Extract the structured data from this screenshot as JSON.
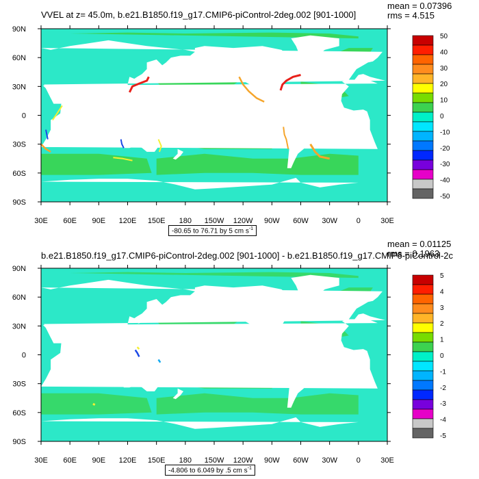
{
  "chart_data": [
    {
      "type": "heatmap",
      "title": "VVEL at z=  45.0m, b.e21.B1850.f19_g17.CMIP6-piControl-2deg.002 [901-1000]",
      "stats": {
        "mean": "mean = 0.07396",
        "rms": "rms = 4.515"
      },
      "range_text": "-80.65 to 76.71 by 5 cm s",
      "units_sup": "-1",
      "x_ticks": [
        "30E",
        "60E",
        "90E",
        "120E",
        "150E",
        "180",
        "150W",
        "120W",
        "90W",
        "60W",
        "30W",
        "0",
        "30E"
      ],
      "y_ticks": [
        "90N",
        "60N",
        "30N",
        "0",
        "30S",
        "60S",
        "90S"
      ],
      "colorbar_labels": [
        "50",
        "40",
        "30",
        "20",
        "10",
        "0",
        "-10",
        "-20",
        "-30",
        "-40",
        "-50"
      ],
      "levels": [
        -50,
        -40,
        -30,
        -20,
        -10,
        0,
        10,
        20,
        30,
        40,
        50
      ],
      "background": "#2ce8c8",
      "colors": {
        "land": "#ffffff",
        "cyan": "#2ce8c8",
        "green": "#38d65a",
        "lime": "#63e63a",
        "yellow": "#f5f032",
        "orange": "#f5a52b",
        "red": "#e8201a",
        "blue": "#1a48e6",
        "lightblue": "#14aaf0"
      }
    },
    {
      "type": "heatmap",
      "title": "b.e21.B1850.f19_g17.CMIP6-piControl-2deg.002 [901-1000] - b.e21.B1850.f19_g17.CMIP6-piControl-2c",
      "stats": {
        "mean": "mean = 0.01125",
        "rms": "rms = 0.1963"
      },
      "range_text": "-4.806 to 6.049 by .5 cm s",
      "units_sup": "-1",
      "x_ticks": [
        "30E",
        "60E",
        "90E",
        "120E",
        "150E",
        "180",
        "150W",
        "120W",
        "90W",
        "60W",
        "30W",
        "0",
        "30E"
      ],
      "y_ticks": [
        "90N",
        "60N",
        "30N",
        "0",
        "30S",
        "60S",
        "90S"
      ],
      "colorbar_labels": [
        "5",
        "4",
        "3",
        "2",
        "1",
        "0",
        "-1",
        "-2",
        "-3",
        "-4",
        "-5"
      ],
      "levels": [
        -5,
        -4,
        -3,
        -2,
        -1,
        0,
        1,
        2,
        3,
        4,
        5
      ],
      "background": "#2ce8c8",
      "colors": {
        "land": "#ffffff",
        "cyan": "#2ce8c8",
        "green": "#38d65a",
        "lime": "#63e63a",
        "yellow": "#f5f032",
        "orange": "#f5a52b",
        "red": "#e8201a",
        "blue": "#1a48e6",
        "lightblue": "#14aaf0"
      }
    }
  ],
  "colorbar_palette": [
    "#c80000",
    "#ff1e00",
    "#ff6400",
    "#ff8c1e",
    "#ffb428",
    "#ffff00",
    "#78dc00",
    "#3cd250",
    "#00f0c8",
    "#00e6ff",
    "#00b4ff",
    "#0078ff",
    "#0028ff",
    "#7800dc",
    "#e600c8",
    "#c8c8c8",
    "#646464"
  ]
}
